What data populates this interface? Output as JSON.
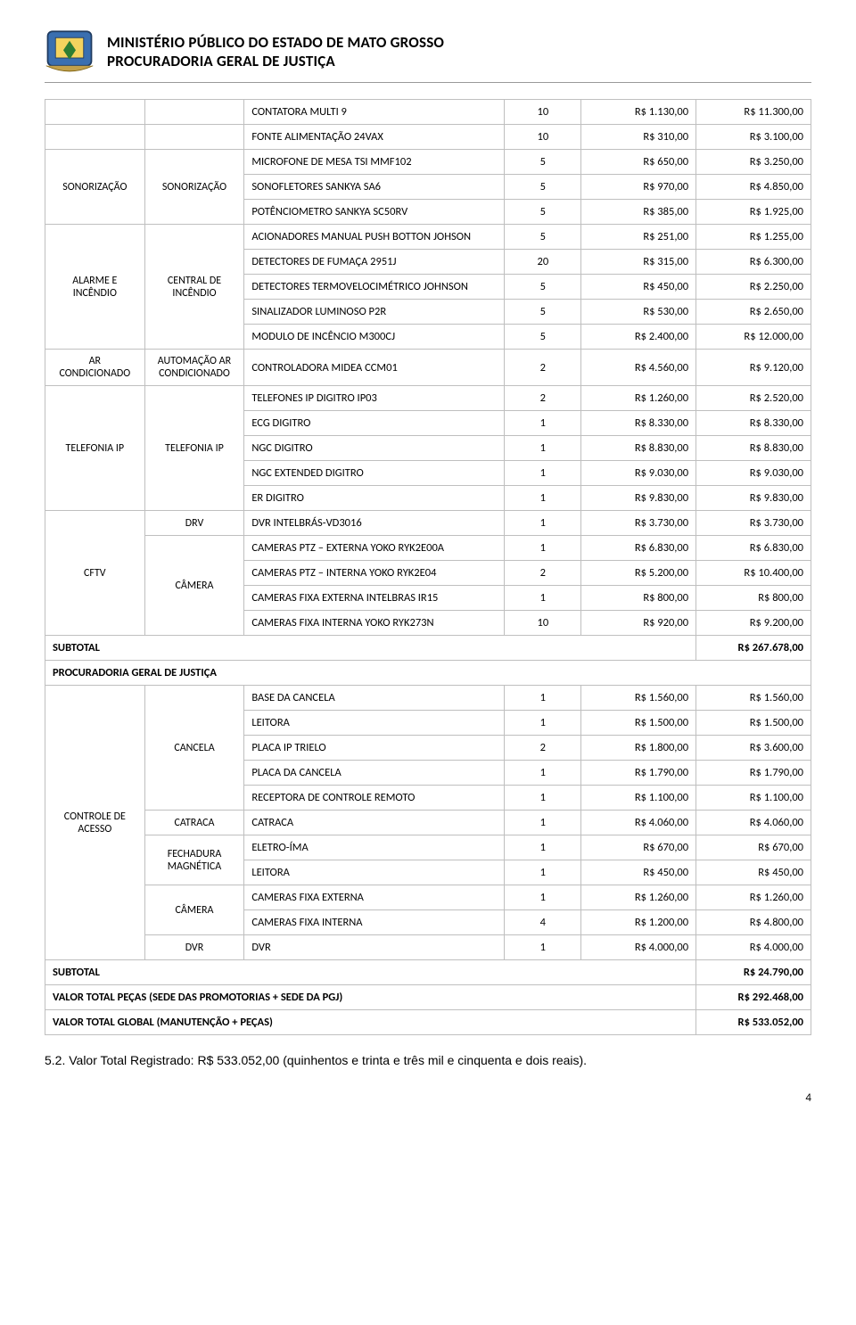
{
  "header": {
    "line1": "MINISTÉRIO PÚBLICO DO ESTADO DE MATO GROSSO",
    "line2": "PROCURADORIA GERAL DE JUSTIÇA"
  },
  "colors": {
    "border": "#bfbfbf",
    "header_rule": "#999999",
    "text": "#000000",
    "background": "#ffffff"
  },
  "rows": [
    {
      "c1": "",
      "c2": "",
      "desc": "CONTATORA MULTI 9",
      "qty": "10",
      "unit": "R$ 1.130,00",
      "total": "R$ 11.300,00"
    },
    {
      "c1": "",
      "c2": "",
      "desc": "FONTE ALIMENTAÇÃO 24VAX",
      "qty": "10",
      "unit": "R$ 310,00",
      "total": "R$ 3.100,00"
    },
    {
      "c1": "SONORIZAÇÃO",
      "c2": "SONORIZAÇÃO",
      "g1": 3,
      "g2": 3,
      "desc": "MICROFONE DE MESA TSI MMF102",
      "qty": "5",
      "unit": "R$ 650,00",
      "total": "R$ 3.250,00"
    },
    {
      "desc": "SONOFLETORES SANKYA SA6",
      "qty": "5",
      "unit": "R$ 970,00",
      "total": "R$ 4.850,00"
    },
    {
      "desc": "POTÊNCIOMETRO SANKYA SC50RV",
      "qty": "5",
      "unit": "R$ 385,00",
      "total": "R$ 1.925,00"
    },
    {
      "c1": "ALARME E INCÊNDIO",
      "c2": "CENTRAL DE INCÊNDIO",
      "g1": 5,
      "g2": 5,
      "desc": "ACIONADORES MANUAL PUSH BOTTON JOHSON",
      "qty": "5",
      "unit": "R$ 251,00",
      "total": "R$ 1.255,00"
    },
    {
      "desc": "DETECTORES DE FUMAÇA 2951J",
      "qty": "20",
      "unit": "R$ 315,00",
      "total": "R$ 6.300,00"
    },
    {
      "desc": "DETECTORES TERMOVELOCIMÉTRICO JOHNSON",
      "qty": "5",
      "unit": "R$ 450,00",
      "total": "R$ 2.250,00"
    },
    {
      "desc": "SINALIZADOR LUMINOSO P2R",
      "qty": "5",
      "unit": "R$ 530,00",
      "total": "R$ 2.650,00"
    },
    {
      "desc": "MODULO DE INCÊNCIO M300CJ",
      "qty": "5",
      "unit": "R$ 2.400,00",
      "total": "R$ 12.000,00"
    },
    {
      "c1": "AR CONDICIONADO",
      "c2": "AUTOMAÇÃO AR CONDICIONADO",
      "g1": 1,
      "g2": 1,
      "desc": "CONTROLADORA MIDEA CCM01",
      "qty": "2",
      "unit": "R$ 4.560,00",
      "total": "R$ 9.120,00"
    },
    {
      "c1": "TELEFONIA IP",
      "c2": "TELEFONIA IP",
      "g1": 5,
      "g2": 5,
      "desc": "TELEFONES IP DIGITRO IP03",
      "qty": "2",
      "unit": "R$ 1.260,00",
      "total": "R$ 2.520,00"
    },
    {
      "desc": "ECG DIGITRO",
      "qty": "1",
      "unit": "R$ 8.330,00",
      "total": "R$ 8.330,00"
    },
    {
      "desc": "NGC DIGITRO",
      "qty": "1",
      "unit": "R$ 8.830,00",
      "total": "R$ 8.830,00"
    },
    {
      "desc": "NGC EXTENDED DIGITRO",
      "qty": "1",
      "unit": "R$ 9.030,00",
      "total": "R$ 9.030,00"
    },
    {
      "desc": "ER DIGITRO",
      "qty": "1",
      "unit": "R$ 9.830,00",
      "total": "R$ 9.830,00"
    },
    {
      "c1": "CFTV",
      "g1": 5,
      "c2": "DRV",
      "g2": 1,
      "desc": "DVR INTELBRÁS-VD3016",
      "qty": "1",
      "unit": "R$ 3.730,00",
      "total": "R$ 3.730,00"
    },
    {
      "c2": "CÂMERA",
      "g2": 4,
      "desc": "CAMERAS PTZ – EXTERNA YOKO RYK2E00A",
      "qty": "1",
      "unit": "R$ 6.830,00",
      "total": "R$ 6.830,00"
    },
    {
      "desc": "CAMERAS PTZ – INTERNA YOKO RYK2E04",
      "qty": "2",
      "unit": "R$ 5.200,00",
      "total": "R$ 10.400,00"
    },
    {
      "desc": "CAMERAS FIXA EXTERNA INTELBRAS IR15",
      "qty": "1",
      "unit": "R$ 800,00",
      "total": "R$ 800,00"
    },
    {
      "desc": "CAMERAS FIXA INTERNA YOKO RYK273N",
      "qty": "10",
      "unit": "R$ 920,00",
      "total": "R$ 9.200,00"
    }
  ],
  "subtotal1": {
    "label": "SUBTOTAL",
    "value": "R$ 267.678,00"
  },
  "section2": "PROCURADORIA GERAL DE JUSTIÇA",
  "rows2": [
    {
      "c1": "CONTROLE DE ACESSO",
      "g1": 11,
      "c2": "CANCELA",
      "g2": 5,
      "desc": "BASE DA CANCELA",
      "qty": "1",
      "unit": "R$ 1.560,00",
      "total": "R$ 1.560,00"
    },
    {
      "desc": "LEITORA",
      "qty": "1",
      "unit": "R$ 1.500,00",
      "total": "R$ 1.500,00"
    },
    {
      "desc": "PLACA IP TRIELO",
      "qty": "2",
      "unit": "R$ 1.800,00",
      "total": "R$ 3.600,00"
    },
    {
      "desc": "PLACA DA CANCELA",
      "qty": "1",
      "unit": "R$ 1.790,00",
      "total": "R$ 1.790,00"
    },
    {
      "desc": "RECEPTORA DE CONTROLE REMOTO",
      "qty": "1",
      "unit": "R$ 1.100,00",
      "total": "R$ 1.100,00"
    },
    {
      "c2": "CATRACA",
      "g2": 1,
      "desc": "CATRACA",
      "qty": "1",
      "unit": "R$ 4.060,00",
      "total": "R$ 4.060,00"
    },
    {
      "c2": "FECHADURA MAGNÉTICA",
      "g2": 2,
      "desc": "ELETRO-ÍMA",
      "qty": "1",
      "unit": "R$ 670,00",
      "total": "R$ 670,00"
    },
    {
      "desc": "LEITORA",
      "qty": "1",
      "unit": "R$ 450,00",
      "total": "R$ 450,00"
    },
    {
      "c2": "CÂMERA",
      "g2": 2,
      "desc": "CAMERAS FIXA EXTERNA",
      "qty": "1",
      "unit": "R$ 1.260,00",
      "total": "R$ 1.260,00"
    },
    {
      "desc": "CAMERAS FIXA INTERNA",
      "qty": "4",
      "unit": "R$ 1.200,00",
      "total": "R$ 4.800,00"
    },
    {
      "c2": "DVR",
      "g2": 1,
      "desc": "DVR",
      "qty": "1",
      "unit": "R$ 4.000,00",
      "total": "R$ 4.000,00"
    }
  ],
  "subtotal2": {
    "label": "SUBTOTAL",
    "value": "R$ 24.790,00"
  },
  "total_pecas": {
    "label": "VALOR TOTAL PEÇAS (SEDE DAS PROMOTORIAS + SEDE DA PGJ)",
    "value": "R$ 292.468,00"
  },
  "total_global": {
    "label": "VALOR TOTAL GLOBAL (MANUTENÇÃO + PEÇAS)",
    "value": "R$ 533.052,00"
  },
  "footnote": "5.2. Valor Total Registrado: R$ 533.052,00 (quinhentos e trinta e três mil e cinquenta e dois reais).",
  "page": "4"
}
